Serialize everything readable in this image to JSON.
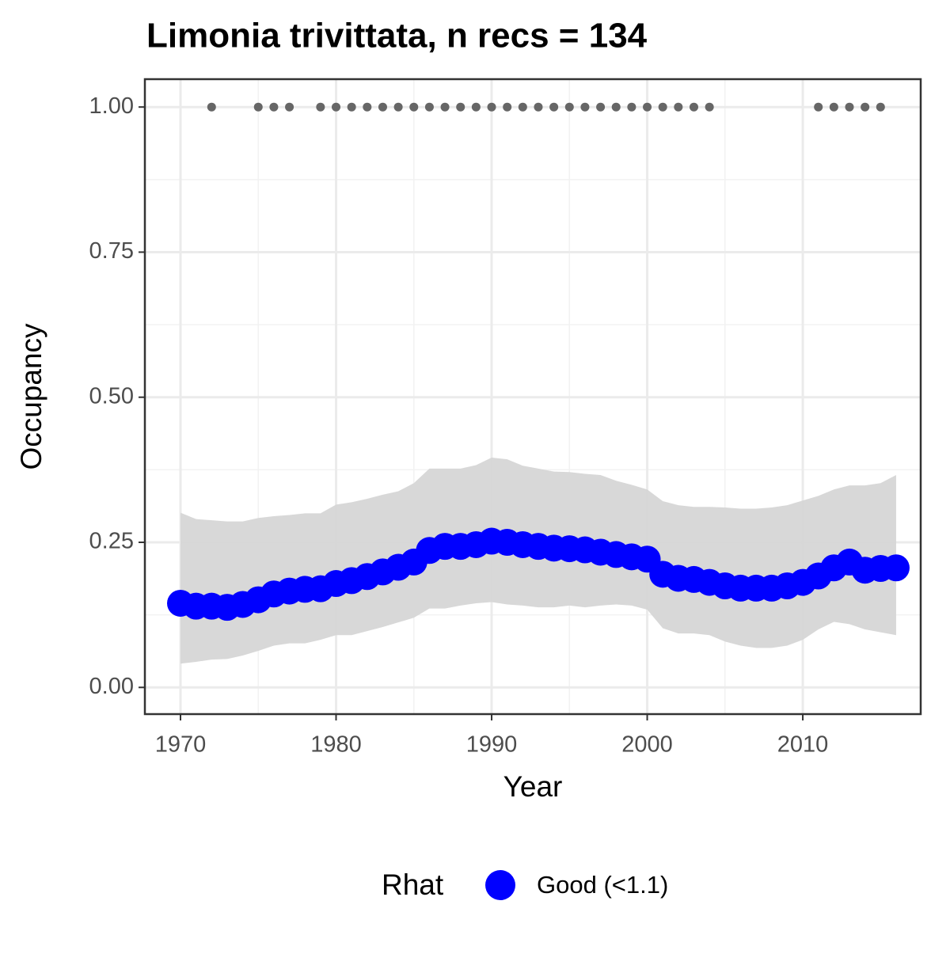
{
  "chart_data": {
    "type": "line",
    "title": "Limonia trivittata, n recs = 134",
    "x_label": "Year",
    "y_label": "Occupancy",
    "legend_title": "Rhat",
    "legend_position": "bottom",
    "x": [
      1970,
      1971,
      1972,
      1973,
      1974,
      1975,
      1976,
      1977,
      1978,
      1979,
      1980,
      1981,
      1982,
      1983,
      1984,
      1985,
      1986,
      1987,
      1988,
      1989,
      1990,
      1991,
      1992,
      1993,
      1994,
      1995,
      1996,
      1997,
      1998,
      1999,
      2000,
      2001,
      2002,
      2003,
      2004,
      2005,
      2006,
      2007,
      2008,
      2009,
      2010,
      2011,
      2012,
      2013,
      2014,
      2015,
      2016
    ],
    "series": [
      {
        "name": "Good (<1.1)",
        "color": "#0000ff",
        "band_color": "#d6d6d6",
        "values": [
          0.145,
          0.14,
          0.14,
          0.138,
          0.143,
          0.151,
          0.161,
          0.166,
          0.169,
          0.17,
          0.179,
          0.184,
          0.191,
          0.199,
          0.207,
          0.216,
          0.236,
          0.243,
          0.243,
          0.246,
          0.252,
          0.25,
          0.246,
          0.243,
          0.24,
          0.239,
          0.237,
          0.233,
          0.229,
          0.225,
          0.221,
          0.195,
          0.188,
          0.186,
          0.181,
          0.175,
          0.171,
          0.171,
          0.171,
          0.175,
          0.181,
          0.192,
          0.206,
          0.216,
          0.202,
          0.205,
          0.206
        ],
        "upper": [
          0.301,
          0.29,
          0.288,
          0.286,
          0.286,
          0.292,
          0.295,
          0.297,
          0.3,
          0.3,
          0.315,
          0.319,
          0.325,
          0.332,
          0.338,
          0.352,
          0.377,
          0.377,
          0.377,
          0.383,
          0.396,
          0.393,
          0.382,
          0.377,
          0.372,
          0.371,
          0.368,
          0.366,
          0.356,
          0.349,
          0.341,
          0.321,
          0.314,
          0.311,
          0.311,
          0.31,
          0.308,
          0.308,
          0.31,
          0.314,
          0.322,
          0.33,
          0.341,
          0.348,
          0.348,
          0.352,
          0.366
        ],
        "lower": [
          0.041,
          0.044,
          0.048,
          0.049,
          0.055,
          0.063,
          0.072,
          0.076,
          0.076,
          0.082,
          0.09,
          0.09,
          0.097,
          0.104,
          0.112,
          0.12,
          0.136,
          0.136,
          0.141,
          0.145,
          0.147,
          0.143,
          0.141,
          0.138,
          0.138,
          0.141,
          0.138,
          0.141,
          0.143,
          0.141,
          0.134,
          0.102,
          0.093,
          0.093,
          0.09,
          0.079,
          0.072,
          0.068,
          0.068,
          0.072,
          0.082,
          0.1,
          0.113,
          0.109,
          0.1,
          0.095,
          0.09
        ]
      }
    ],
    "records": {
      "color": "#666666",
      "x": [
        1972,
        1975,
        1976,
        1977,
        1979,
        1980,
        1981,
        1982,
        1983,
        1984,
        1985,
        1986,
        1987,
        1988,
        1989,
        1990,
        1991,
        1992,
        1993,
        1994,
        1995,
        1996,
        1997,
        1998,
        1999,
        2000,
        2001,
        2002,
        2003,
        2004,
        2011,
        2012,
        2013,
        2014,
        2015
      ],
      "values": [
        1,
        1,
        1,
        1,
        1,
        1,
        1,
        1,
        1,
        1,
        1,
        1,
        1,
        1,
        1,
        1,
        1,
        1,
        1,
        1,
        1,
        1,
        1,
        1,
        1,
        1,
        1,
        1,
        1,
        1,
        1,
        1,
        1,
        1,
        1
      ]
    },
    "xlim": [
      1967.71,
      2017.58
    ],
    "ylim": [
      -0.046,
      1.048
    ],
    "xticks": [
      1970,
      1980,
      1990,
      2000,
      2010
    ],
    "yticks": [
      {
        "value": 0,
        "label": "0.00"
      },
      {
        "value": 0.25,
        "label": "0.25"
      },
      {
        "value": 0.5,
        "label": "0.50"
      },
      {
        "value": 0.75,
        "label": "0.75"
      },
      {
        "value": 1,
        "label": "1.00"
      }
    ],
    "grid": true
  }
}
